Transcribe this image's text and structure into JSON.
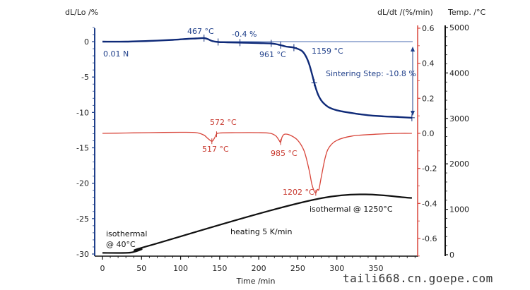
{
  "chart_data": {
    "type": "line",
    "title": "",
    "xlabel": "Time /min",
    "xlim": [
      0,
      400
    ],
    "x_ticks": [
      0,
      50,
      100,
      150,
      200,
      250,
      300,
      350
    ],
    "axes": {
      "left": {
        "label": "dL/Lo /%",
        "ylim": [
          -30,
          2.5
        ],
        "ticks": [
          0,
          -5,
          -10,
          -15,
          -20,
          -25,
          -30
        ],
        "color": "#1f3f8a"
      },
      "right1": {
        "label": "dL/dt /(%/min)",
        "ylim": [
          -0.68,
          0.62
        ],
        "ticks": [
          "0.6",
          "0.4",
          "0.2",
          "0.0",
          "-0.2",
          "-0.4",
          "-0.6"
        ],
        "color": "#d8453a"
      },
      "right2": {
        "label": "Temp. /°C",
        "ylim": [
          0,
          5050
        ],
        "ticks": [
          5000,
          4000,
          3000,
          2000,
          1000,
          0
        ],
        "color": "#111111"
      }
    },
    "series": [
      {
        "name": "dL/Lo",
        "axis": "left",
        "color": "#0f2a78",
        "x": [
          0,
          30,
          60,
          90,
          110,
          120,
          130,
          135,
          140,
          148,
          160,
          180,
          200,
          215,
          222,
          228,
          235,
          245,
          255,
          260,
          264,
          268,
          272,
          276,
          280,
          284,
          290,
          300,
          320,
          340,
          360,
          380,
          396
        ],
        "y": [
          0.0,
          0.0,
          0.1,
          0.25,
          0.4,
          0.45,
          0.5,
          0.35,
          0.1,
          -0.05,
          -0.1,
          -0.15,
          -0.2,
          -0.25,
          -0.35,
          -0.5,
          -0.7,
          -0.85,
          -1.3,
          -2.0,
          -3.0,
          -4.5,
          -6.2,
          -7.5,
          -8.3,
          -8.8,
          -9.3,
          -9.7,
          -10.1,
          -10.4,
          -10.55,
          -10.65,
          -10.75
        ]
      },
      {
        "name": "dL/dt",
        "axis": "right1",
        "color": "#d8453a",
        "x": [
          0,
          30,
          60,
          100,
          120,
          130,
          135,
          140,
          143,
          146,
          150,
          170,
          200,
          215,
          222,
          226,
          228,
          230,
          233,
          240,
          250,
          258,
          264,
          268,
          271,
          273,
          275,
          277,
          280,
          285,
          290,
          300,
          320,
          350,
          380,
          396
        ],
        "y": [
          0.0,
          0.002,
          0.004,
          0.006,
          0.004,
          -0.01,
          -0.03,
          -0.045,
          -0.03,
          -0.005,
          0.002,
          0.004,
          0.004,
          0.0,
          -0.015,
          -0.04,
          -0.05,
          -0.02,
          -0.005,
          -0.01,
          -0.04,
          -0.1,
          -0.2,
          -0.29,
          -0.33,
          -0.34,
          -0.32,
          -0.32,
          -0.25,
          -0.14,
          -0.08,
          -0.04,
          -0.015,
          -0.005,
          0.0,
          0.0
        ]
      },
      {
        "name": "Temperature",
        "axis": "right2",
        "color": "#111111",
        "x": [
          0,
          30,
          40,
          50,
          60,
          282,
          396
        ],
        "y": [
          40,
          40,
          60,
          120,
          200,
          1250,
          1250
        ]
      }
    ],
    "annotations": [
      {
        "text": "0.01 N",
        "color": "blue"
      },
      {
        "text": "467 °C",
        "color": "blue"
      },
      {
        "text": "-0.4 %",
        "color": "blue"
      },
      {
        "text": "961 °C",
        "color": "blue"
      },
      {
        "text": "1159 °C",
        "color": "blue"
      },
      {
        "text": "Sintering Step: -10.8 %",
        "color": "blue"
      },
      {
        "text": "572 °C",
        "color": "red"
      },
      {
        "text": "517 °C",
        "color": "red"
      },
      {
        "text": "985 °C",
        "color": "red"
      },
      {
        "text": "1202 °C",
        "color": "red"
      },
      {
        "text": "isothermal @ 1250°C",
        "color": "black"
      },
      {
        "text": "heating 5 K/min",
        "color": "black"
      },
      {
        "text": "isothermal",
        "color": "black"
      },
      {
        "text": "@ 40°C",
        "color": "black"
      }
    ],
    "grid": false,
    "legend": "none"
  },
  "watermark": "taili668.cn.goepe.com"
}
